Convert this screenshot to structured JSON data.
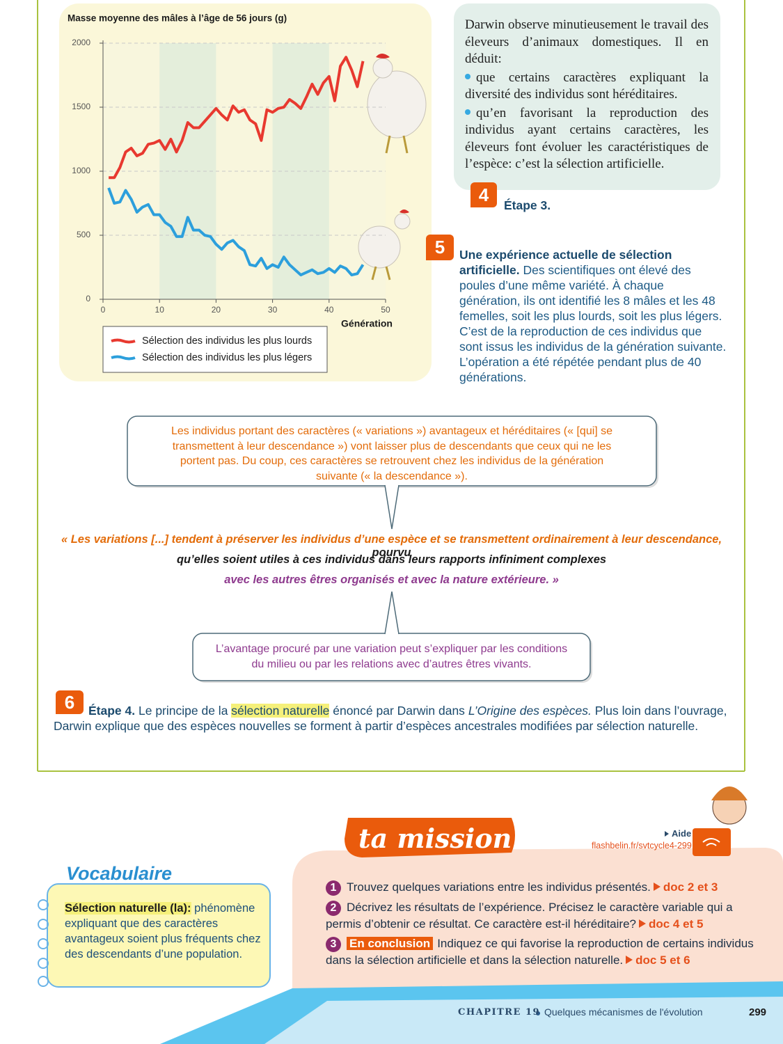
{
  "chart_data": {
    "type": "line",
    "title": "Masse moyenne des mâles à l’âge de 56 jours (g)",
    "x_label": "Génération",
    "x": [
      1,
      2,
      3,
      4,
      5,
      6,
      7,
      8,
      9,
      10,
      11,
      12,
      13,
      14,
      15,
      16,
      17,
      18,
      19,
      20,
      21,
      22,
      23,
      24,
      25,
      26,
      27,
      28,
      29,
      30,
      31,
      32,
      33,
      34,
      35,
      36,
      37,
      38,
      39,
      40,
      41,
      42,
      43,
      44,
      45,
      46
    ],
    "series": [
      {
        "name": "Sélection des individus les plus lourds",
        "color": "#e8392f",
        "values": [
          950,
          950,
          1030,
          1150,
          1180,
          1120,
          1140,
          1210,
          1220,
          1240,
          1170,
          1250,
          1150,
          1240,
          1380,
          1340,
          1340,
          1390,
          1440,
          1490,
          1440,
          1400,
          1510,
          1460,
          1480,
          1400,
          1370,
          1240,
          1480,
          1460,
          1490,
          1500,
          1560,
          1530,
          1490,
          1580,
          1680,
          1600,
          1690,
          1740,
          1550,
          1820,
          1890,
          1790,
          1660,
          1860
        ]
      },
      {
        "name": "Sélection des individus les plus légers",
        "color": "#2c9fdc",
        "values": [
          870,
          750,
          760,
          850,
          780,
          680,
          720,
          740,
          660,
          660,
          600,
          570,
          490,
          490,
          640,
          540,
          540,
          500,
          490,
          430,
          390,
          440,
          460,
          410,
          380,
          270,
          260,
          320,
          240,
          270,
          250,
          330,
          270,
          230,
          190,
          210,
          230,
          200,
          210,
          240,
          210,
          260,
          240,
          190,
          200,
          270
        ]
      }
    ],
    "xlim": [
      0,
      50
    ],
    "xticks": [
      0,
      10,
      20,
      30,
      40,
      50
    ],
    "ylim": [
      0,
      2000
    ],
    "yticks": [
      0,
      500,
      1000,
      1500,
      2000
    ],
    "grid": true
  },
  "doc4": {
    "paragraph": "Darwin observe minutieusement le travail des éleveurs d’animaux domestiques. Il en déduit:",
    "bullets": [
      "que certains caractères expliquant la diversité des individus sont héréditaires.",
      "qu’en favorisant la reproduction des individus ayant certains caractères, les éleveurs font évoluer les caractéristiques de l’espèce: c’est la sélection artificielle."
    ],
    "number": "4",
    "caption": "Étape 3."
  },
  "doc5": {
    "number": "5",
    "title": "Une expérience actuelle de sélection artificielle.",
    "text": "Des scientifiques ont élevé des poules d’une même variété. À chaque génération, ils ont identifié les 8 mâles et les 48 femelles, soit les plus lourds, soit les plus légers. C’est de la reproduction de ces individus que sont issus les individus de la génération suivante. L’opération a été répétée pendant plus de 40 générations."
  },
  "bubble_top": "Les individus portant des caractères (« variations ») avantageux et héréditaires (« [qui] se transmettent à leur descendance ») vont laisser plus de descendants que ceux qui ne les portent pas. Du coup, ces caractères se retrouvent chez les individus de la génération suivante (« la descendance »).",
  "quote": {
    "line1_orange": "« Les variations [...] tendent à préserver les individus d’une espèce et se transmettent ordinairement à leur descendance,",
    "line1_black": "pourvu",
    "line2": "qu’elles soient utiles à ces individus dans leurs rapports infiniment complexes",
    "line3": "avec les autres êtres organisés et avec la nature extérieure. »"
  },
  "bubble_bottom": "L’avantage procuré par une variation peut s’expliquer par les conditions du milieu ou par les relations avec d’autres êtres vivants.",
  "doc6": {
    "number": "6",
    "label": "Étape 4.",
    "text_1": "Le principe de la",
    "highlight": "sélection naturelle",
    "text_2": "énoncé par Darwin dans",
    "book": "L’Origine des espèces.",
    "text_3": "Plus loin dans l’ouvrage, Darwin explique que des espèces nouvelles se forment à partir d’espèces ancestrales modifiées par sélection naturelle."
  },
  "mission": {
    "title": "ta mission",
    "help": "Aide",
    "link": "flashbelin.fr/svtcycle4-299",
    "items": [
      {
        "number": "1",
        "text": "Trouvez quelques variations entre les individus présentés.",
        "ref": "doc 2 et 3"
      },
      {
        "number": "2",
        "text": "Décrivez les résultats de l’expérience. Précisez le caractère variable qui a permis d’obtenir ce résultat. Ce caractère est-il héréditaire?",
        "ref": "doc 4 et 5"
      },
      {
        "number": "3",
        "tag": "En conclusion",
        "text": "Indiquez ce qui favorise la reproduction de certains individus dans la sélection artificielle et dans la sélection naturelle.",
        "ref": "doc 5 et 6"
      }
    ]
  },
  "vocabulary": {
    "title": "Vocabulaire",
    "term": "Sélection naturelle (la):",
    "definition": "phénomène expliquant que des caractères avantageux soient plus fréquents chez des descendants d’une population."
  },
  "footer": {
    "chapter": "CHAPITRE 19",
    "title": "Quelques mécanismes de l'évolution",
    "page": "299"
  }
}
